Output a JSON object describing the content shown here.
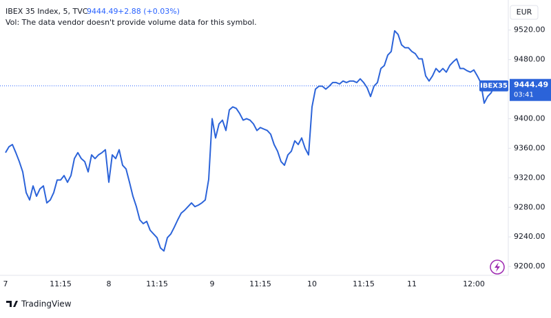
{
  "chart_data": {
    "type": "line",
    "title": "IBEX 35 Index, 5, TVC",
    "last_price": 9444.49,
    "change_label": "+2.88 (+0.03%)",
    "subtitle": "Vol: The data vendor doesn't provide volume data for this symbol.",
    "currency": "EUR",
    "symbol": "IBEX35",
    "countdown": "03:41",
    "brand": "TradingView",
    "categories": [
      "7",
      null,
      null,
      null,
      null,
      null,
      null,
      null,
      null,
      null,
      null,
      null,
      null,
      null,
      null,
      null,
      "11:15",
      null,
      null,
      null,
      null,
      null,
      null,
      null,
      null,
      null,
      null,
      null,
      null,
      null,
      "8",
      null,
      null,
      null,
      null,
      null,
      null,
      null,
      null,
      null,
      null,
      null,
      null,
      null,
      "11:15",
      null,
      null,
      null,
      null,
      null,
      null,
      null,
      null,
      null,
      null,
      null,
      null,
      null,
      null,
      null,
      "9",
      null,
      null,
      null,
      null,
      null,
      null,
      null,
      null,
      null,
      null,
      null,
      null,
      null,
      "11:15",
      null,
      null,
      null,
      null,
      null,
      null,
      null,
      null,
      null,
      null,
      null,
      null,
      null,
      null,
      "10",
      null,
      null,
      null,
      null,
      null,
      null,
      null,
      null,
      null,
      null,
      null,
      null,
      null,
      null,
      "11:15",
      null,
      null,
      null,
      null,
      null,
      null,
      null,
      null,
      null,
      null,
      null,
      null,
      null,
      "11",
      null,
      null,
      null,
      null,
      null,
      null,
      null,
      null,
      null,
      null,
      null,
      null,
      null,
      null,
      null,
      null,
      null,
      "12:00",
      null,
      null,
      null,
      null,
      null,
      null
    ],
    "series": [
      {
        "name": "IBEX35",
        "color": "#2b63d9",
        "values": [
          9354,
          9362,
          9365,
          9354,
          9342,
          9328,
          9300,
          9290,
          9309,
          9295,
          9305,
          9309,
          9286,
          9290,
          9300,
          9317,
          9317,
          9323,
          9314,
          9323,
          9346,
          9354,
          9346,
          9342,
          9328,
          9351,
          9346,
          9351,
          9354,
          9358,
          9314,
          9351,
          9346,
          9358,
          9337,
          9332,
          9314,
          9295,
          9281,
          9263,
          9258,
          9261,
          9249,
          9244,
          9239,
          9225,
          9221,
          9239,
          9244,
          9253,
          9263,
          9272,
          9276,
          9281,
          9286,
          9281,
          9283,
          9286,
          9290,
          9318,
          9400,
          9374,
          9393,
          9398,
          9384,
          9412,
          9416,
          9414,
          9407,
          9398,
          9400,
          9398,
          9393,
          9384,
          9388,
          9386,
          9384,
          9379,
          9365,
          9356,
          9342,
          9337,
          9351,
          9356,
          9370,
          9365,
          9374,
          9360,
          9351,
          9416,
          9440,
          9444,
          9444,
          9440,
          9444,
          9449,
          9449,
          9447,
          9451,
          9449,
          9451,
          9451,
          9449,
          9454,
          9449,
          9442,
          9430,
          9444,
          9449,
          9468,
          9472,
          9486,
          9491,
          9519,
          9514,
          9500,
          9496,
          9496,
          9491,
          9488,
          9481,
          9481,
          9458,
          9451,
          9458,
          9468,
          9463,
          9468,
          9463,
          9472,
          9477,
          9481,
          9468,
          9468,
          9465,
          9463,
          9466,
          9458,
          9449,
          9421,
          9430,
          9435,
          9444.49
        ]
      }
    ],
    "ylim": [
      9188,
      9556
    ],
    "yticks": [
      {
        "value": 9200,
        "label": "9200.00"
      },
      {
        "value": 9240,
        "label": "9240.00"
      },
      {
        "value": 9280,
        "label": "9280.00"
      },
      {
        "value": 9320,
        "label": "9320.00"
      },
      {
        "value": 9360,
        "label": "9360.00"
      },
      {
        "value": 9400,
        "label": "9400.00"
      },
      {
        "value": 9440,
        "label": "9440.00"
      },
      {
        "value": 9480,
        "label": "9480.00"
      },
      {
        "value": 9520,
        "label": "9520.00"
      }
    ],
    "grid": false
  }
}
